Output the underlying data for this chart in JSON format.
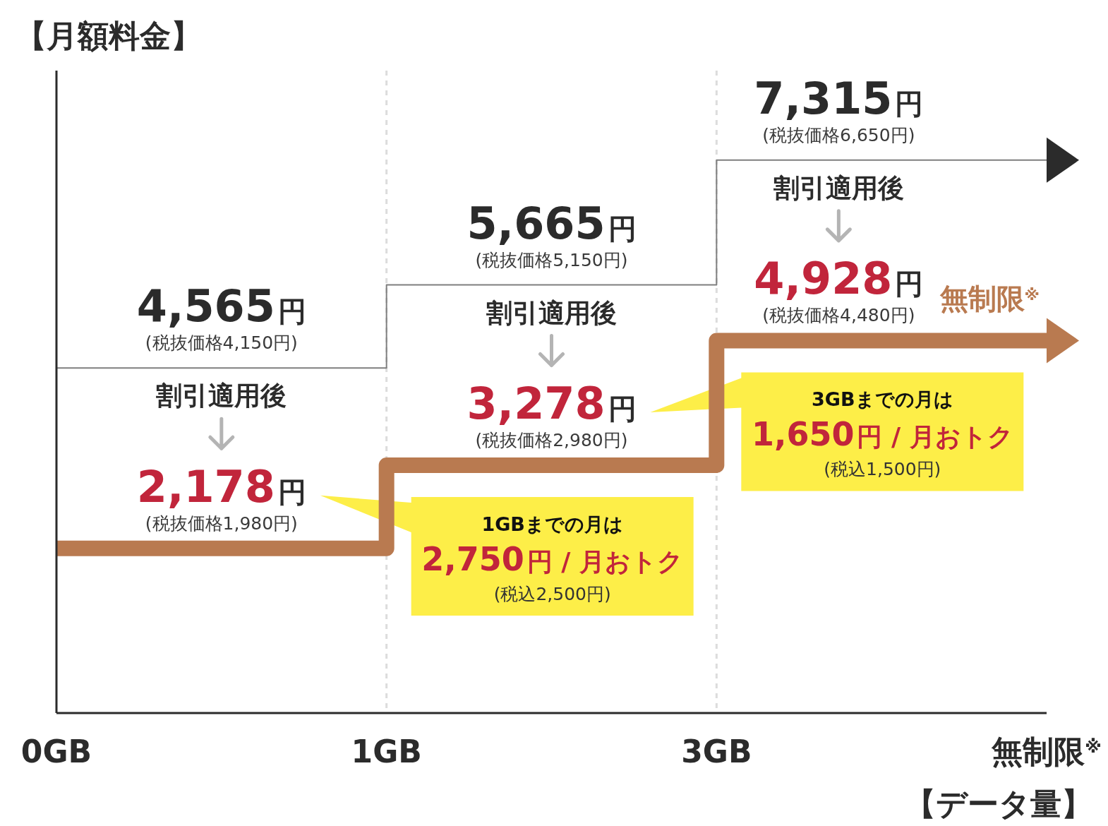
{
  "chart_data": {
    "type": "step",
    "xlabel": "【データ量】",
    "ylabel": "【月額料金】",
    "categories": [
      "0GB",
      "1GB",
      "3GB",
      "無制限$^{※}$"
    ],
    "ylim": [
      0,
      8500
    ],
    "series": [
      {
        "color": "#7f7f7f",
        "values": [
          4565,
          5665,
          7315,
          7315
        ],
        "value_labels": [
          "4,565円\n(税抜価格4,150円)",
          "5,665円\n(税抜価格5,150円)",
          "7,315円\n(税抜価格6,650円)",
          null
        ]
      },
      {
        "color": "#b97a50",
        "values": [
          2178,
          3278,
          4928,
          4928
        ],
        "value_labels": [
          "2,178円\n(税抜価格1,980円)",
          "3,278円\n(税抜価格2,980円)",
          "4,928円\n(税抜価格4,480円)",
          null
        ]
      }
    ],
    "annotations": [
      "割引適用後",
      "割引適用後",
      "割引適用後",
      "無制限$^{※}$",
      "1GBまでの月は\n2,750円 / 月おトク\n(税込2,500円)",
      "3GBまでの月は\n1,650円 / 月おトク\n(税込1,500円)"
    ],
    "grid": "x",
    "tick_labels": "x"
  }
}
